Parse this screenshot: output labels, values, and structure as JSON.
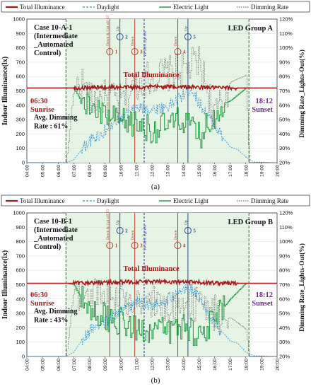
{
  "chart_data": [
    {
      "type": "line",
      "panel_label": "(a)",
      "case_lines": [
        "Case 10-A-1",
        "(Intermediate",
        "_Automated",
        "Control)"
      ],
      "group_label": "LED Group A",
      "legend": [
        "Total Illuminance",
        "Daylight",
        "Electric Light",
        "Dimming Rate"
      ],
      "ylabel": "Indoor Illuminance(lx)",
      "y2label": "Dimming Rate_Lights-Out(%)",
      "ylim": [
        0,
        1000
      ],
      "y2lim": [
        20,
        120
      ],
      "yticks": [
        "0",
        "100",
        "200",
        "300",
        "400",
        "500",
        "600",
        "700",
        "800",
        "900",
        "1000"
      ],
      "y2ticks": [
        "20%",
        "30%",
        "40%",
        "50%",
        "60%",
        "70%",
        "80%",
        "90%",
        "100%",
        "110%",
        "120%"
      ],
      "xticks": [
        "04:00",
        "05:00",
        "06:00",
        "07:00",
        "08:00",
        "09:00",
        "10:00",
        "11:00",
        "12:00",
        "13:00",
        "14:00",
        "15:00",
        "16:00",
        "17:00",
        "18:00",
        "19:00",
        "20:00"
      ],
      "total_label": "Total Illuminance",
      "sunrise_time": "06:30",
      "sunrise_label": "Sunrise",
      "sunset_time": "18:12",
      "sunset_label": "Sunset",
      "avg_text": [
        "Avg. Dimming",
        "Rate : 61%"
      ],
      "markers": [
        {
          "id": "1",
          "kind": "Down",
          "time": 9.3,
          "note": "Down & Cut off 15'"
        },
        {
          "id": "2",
          "kind": "Up",
          "time": 9.95,
          "note": "Up"
        },
        {
          "id": "3",
          "kind": "Down",
          "time": 10.9,
          "note": "Down"
        },
        {
          "id": "VP",
          "kind": "VP",
          "time": 11.5,
          "note": "VP 50% Up/ 0%"
        },
        {
          "id": "4",
          "kind": "Down",
          "time": 13.65,
          "note": "Down"
        },
        {
          "id": "5",
          "kind": "Up",
          "time": 14.3,
          "note": "Up"
        }
      ],
      "series": [
        {
          "name": "Total Illuminance",
          "x": [
            4,
            6.5,
            7,
            9,
            11,
            13,
            15,
            17,
            18.2,
            20
          ],
          "values": [
            520,
            520,
            520,
            525,
            525,
            530,
            525,
            520,
            520,
            520
          ]
        },
        {
          "name": "Daylight",
          "x": [
            4,
            6.5,
            7,
            7.5,
            8,
            9,
            10,
            11,
            12,
            13,
            14,
            14.5,
            15,
            16,
            16.5,
            17,
            17.5,
            18,
            18.5,
            20
          ],
          "values": [
            0,
            0,
            20,
            90,
            150,
            220,
            300,
            380,
            370,
            390,
            470,
            520,
            420,
            260,
            180,
            110,
            90,
            40,
            5,
            0
          ]
        },
        {
          "name": "Electric Light",
          "x": [
            4,
            6.5,
            7,
            7.5,
            8,
            9,
            10,
            11,
            12,
            13,
            14,
            15,
            16,
            16.5,
            17,
            18,
            20
          ],
          "values": [
            520,
            520,
            520,
            420,
            390,
            320,
            280,
            270,
            230,
            260,
            300,
            180,
            330,
            410,
            430,
            520,
            520
          ]
        },
        {
          "name": "Dimming Rate",
          "x": [
            4,
            6.5,
            7,
            7.5,
            8,
            9,
            10,
            11,
            12,
            13,
            14,
            15,
            16,
            16.5,
            17,
            18,
            18.2,
            20
          ],
          "values": [
            0,
            0,
            520,
            560,
            430,
            450,
            420,
            560,
            600,
            620,
            640,
            700,
            330,
            420,
            560,
            610,
            0,
            0
          ]
        }
      ]
    },
    {
      "type": "line",
      "panel_label": "(b)",
      "case_lines": [
        "Case 10-B-1",
        "(Intermediate",
        "_Automated",
        "Control)"
      ],
      "group_label": "LED Group B",
      "legend": [
        "Total Illuminance",
        "Daylight",
        "Electric Light",
        "Dimming Rate"
      ],
      "ylabel": "Indoor Illuminance(lx)",
      "y2label": "Dimming Rate_Lights-Out(%)",
      "ylim": [
        0,
        1000
      ],
      "y2lim": [
        20,
        120
      ],
      "yticks": [
        "0",
        "100",
        "200",
        "300",
        "400",
        "500",
        "600",
        "700",
        "800",
        "900",
        "1000"
      ],
      "y2ticks": [
        "20%",
        "30%",
        "40%",
        "50%",
        "60%",
        "70%",
        "80%",
        "90%",
        "100%",
        "110%",
        "120%"
      ],
      "xticks": [
        "04:00",
        "05:00",
        "06:00",
        "07:00",
        "08:00",
        "09:00",
        "10:00",
        "11:00",
        "12:00",
        "13:00",
        "14:00",
        "15:00",
        "16:00",
        "17:00",
        "18:00",
        "19:00",
        "20:00"
      ],
      "total_label": "Total Illuminance",
      "sunrise_time": "06:30",
      "sunrise_label": "Sunrise",
      "sunset_time": "18:12",
      "sunset_label": "Sunset",
      "avg_text": [
        "Avg. Dimming",
        "Rate : 43%"
      ],
      "markers": [
        {
          "id": "1",
          "kind": "Down",
          "time": 9.3,
          "note": "Down & Cut off 15'"
        },
        {
          "id": "2",
          "kind": "Up",
          "time": 9.95,
          "note": "Up"
        },
        {
          "id": "3",
          "kind": "Down",
          "time": 10.9,
          "note": "Down"
        },
        {
          "id": "VP",
          "kind": "VP",
          "time": 11.5,
          "note": "VP 50% Up/ 0%"
        },
        {
          "id": "4",
          "kind": "Down",
          "time": 13.65,
          "note": "Down"
        },
        {
          "id": "5",
          "kind": "Up",
          "time": 14.3,
          "note": "Up"
        }
      ],
      "series": [
        {
          "name": "Total Illuminance",
          "x": [
            4,
            6.5,
            7,
            9,
            11,
            13,
            15,
            17,
            18.2,
            20
          ],
          "values": [
            510,
            510,
            510,
            515,
            520,
            520,
            515,
            510,
            510,
            510
          ]
        },
        {
          "name": "Daylight",
          "x": [
            4,
            6.5,
            7,
            7.5,
            8,
            9,
            10,
            11,
            12,
            13,
            14,
            14.5,
            15,
            16,
            16.5,
            17,
            17.5,
            18,
            18.5,
            20
          ],
          "values": [
            0,
            0,
            30,
            110,
            180,
            240,
            310,
            380,
            360,
            400,
            460,
            480,
            400,
            240,
            170,
            110,
            90,
            30,
            5,
            0
          ]
        },
        {
          "name": "Electric Light",
          "x": [
            4,
            6.5,
            7,
            7.5,
            8,
            9,
            10,
            11,
            12,
            13,
            14,
            15,
            16,
            16.5,
            17,
            18,
            20
          ],
          "values": [
            510,
            510,
            500,
            400,
            330,
            280,
            240,
            180,
            200,
            170,
            220,
            150,
            260,
            330,
            400,
            510,
            510
          ]
        },
        {
          "name": "Dimming Rate",
          "x": [
            4,
            6.5,
            7,
            7.5,
            8,
            9,
            10,
            11,
            12,
            13,
            14,
            15,
            16,
            16.5,
            17,
            18,
            18.2,
            20
          ],
          "values": [
            0,
            0,
            470,
            420,
            460,
            380,
            410,
            420,
            380,
            300,
            380,
            350,
            300,
            250,
            270,
            190,
            0,
            0
          ]
        }
      ]
    }
  ]
}
